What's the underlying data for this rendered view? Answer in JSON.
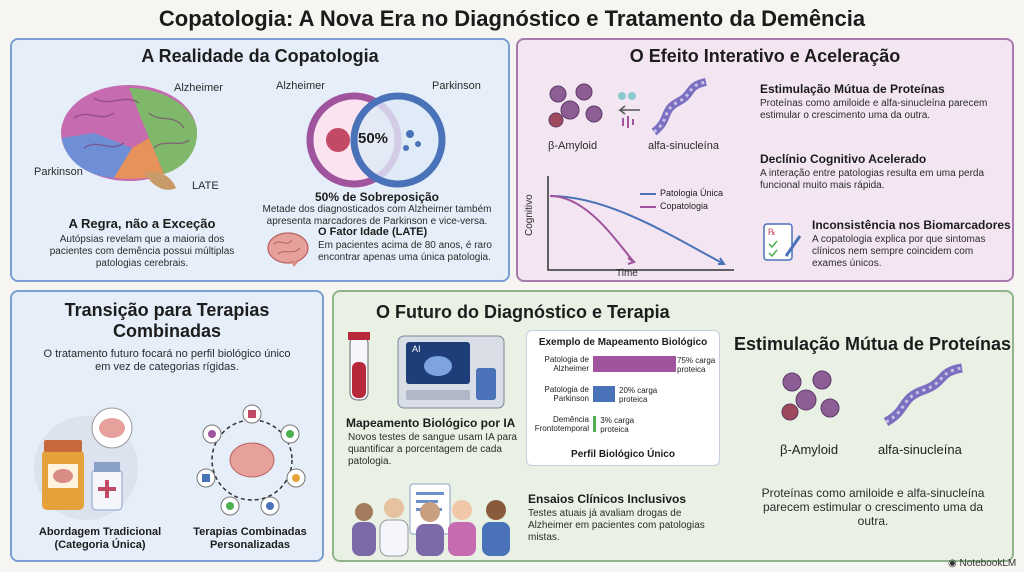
{
  "title": "Copatologia: A Nova Era no Diagnóstico e Tratamento da Demência",
  "realidade": {
    "title": "A Realidade da Copatologia",
    "brain_labels": [
      "Alzheimer",
      "Parkinson",
      "LATE"
    ],
    "venn": {
      "left": "Alzheimer",
      "right": "Parkinson",
      "center": "50%"
    },
    "overlap_title": "50% de Sobreposição",
    "overlap_text": "Metade dos diagnosticados com Alzheimer também apresenta marcadores de Parkinson e vice-versa.",
    "rule_title": "A Regra, não a Exceção",
    "rule_text": "Autópsias revelam que a maioria dos pacientes com demência possui múltiplas patologias cerebrais.",
    "age_title": "O Fator Idade (LATE)",
    "age_text": "Em pacientes acima de 80 anos, é raro encontrar apenas uma única patologia."
  },
  "efeito": {
    "title": "O Efeito Interativo e Aceleração",
    "protein_left": "β-Amyloid",
    "protein_right": "alfa-sinucleína",
    "items": [
      {
        "title": "Estimulação Mútua de Proteínas",
        "text": "Proteínas como amiloide e alfa-sinucleína parecem estimular o crescimento uma da outra."
      },
      {
        "title": "Declínio Cognitivo Acelerado",
        "text": "A interação entre patologias resulta em uma perda funcional muito mais rápida."
      },
      {
        "title": "Inconsistência nos Biomarcadores",
        "text": "A copatologia explica por que sintomas clínicos nem sempre coincidem com exames únicos."
      }
    ],
    "chart": {
      "xlabel": "Time",
      "ylabel": "Cognitivo",
      "legend": [
        "Patologia Única",
        "Copatologia"
      ],
      "colors": [
        "#4a72b8",
        "#a0549e"
      ]
    }
  },
  "transicao": {
    "title": "Transição para Terapias Combinadas",
    "text": "O tratamento futuro focará no perfil biológico único em vez de categorias rígidas.",
    "left_label": "Abordagem Tradicional (Categoria Única)",
    "right_label": "Terapias Combinadas Personalizadas"
  },
  "futuro": {
    "title": "O Futuro do Diagnóstico e Terapia",
    "ai_title": "Mapeamento Biológico por IA",
    "ai_text": "Novos testes de sangue usam IA para quantificar a porcentagem de cada patologia.",
    "ai_screen": "AI",
    "trials_title": "Ensaios Clínicos Inclusivos",
    "trials_text": "Testes atuais já avaliam drogas de Alzheimer em pacientes com patologias mistas.",
    "right_title": "Estimulação Mútua de Proteínas",
    "right_protein_left": "β-Amyloid",
    "right_protein_right": "alfa-sinucleína",
    "right_text": "Proteínas como amiloide e alfa-sinucleína parecem estimular o crescimento uma da outra."
  },
  "chart_data": {
    "type": "bar",
    "title": "Exemplo de Mapeamento Biológico",
    "xlabel": "Perfil Biológico Único",
    "categories": [
      "Patologia de Alzheimer",
      "Patologia de Parkinson",
      "Demência Frontotemporal"
    ],
    "values": [
      75,
      20,
      3
    ],
    "value_labels": [
      "75% carga proteica",
      "20% carga proteica",
      "3% carga proteica"
    ],
    "colors": [
      "#a0549e",
      "#4a72b8",
      "#4caf50"
    ],
    "xlim": [
      0,
      100
    ]
  },
  "branding": "NotebookLM"
}
